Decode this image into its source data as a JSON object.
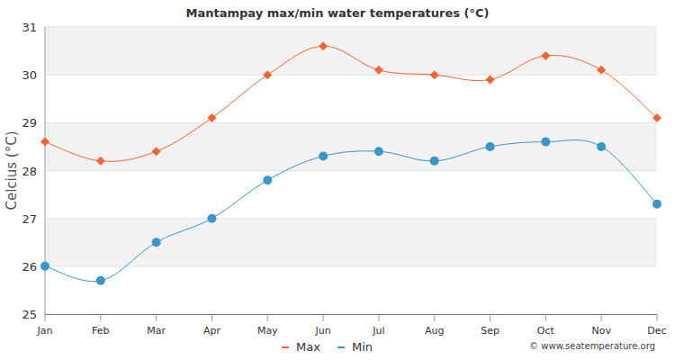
{
  "chart_data": {
    "type": "line",
    "title": "Mantampay max/min water temperatures (°C)",
    "y_label": "Celcius (°C)",
    "annotations": [
      "© www.seatemperature.org"
    ],
    "categories": [
      "Jan",
      "Feb",
      "Mar",
      "Apr",
      "May",
      "Jun",
      "Jul",
      "Aug",
      "Sep",
      "Oct",
      "Nov",
      "Dec"
    ],
    "series": [
      {
        "name": "Max",
        "color": "#f26430",
        "marker": "diamond",
        "line_style": "smooth",
        "values": [
          28.6,
          28.2,
          28.4,
          29.1,
          30.0,
          30.6,
          30.1,
          30.0,
          29.9,
          30.4,
          30.1,
          29.1
        ]
      },
      {
        "name": "Min",
        "color": "#3a95c8",
        "marker": "circle",
        "line_style": "smooth",
        "values": [
          26.0,
          25.7,
          26.5,
          27.0,
          27.8,
          28.3,
          28.4,
          28.2,
          28.5,
          28.6,
          28.5,
          27.3
        ]
      }
    ],
    "ylim": [
      25,
      31
    ],
    "yticks": [
      25,
      26,
      27,
      28,
      29,
      30,
      31
    ],
    "grid": true,
    "legend": "bottom"
  }
}
